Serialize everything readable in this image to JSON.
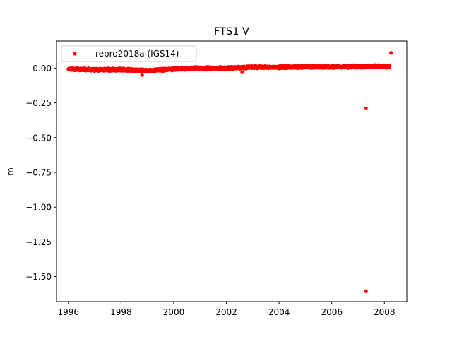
{
  "chart_data": {
    "type": "scatter",
    "title": "FTS1 V",
    "xlabel": "",
    "ylabel": "m",
    "xlim": [
      1995.55,
      2008.85
    ],
    "ylim": [
      -1.68,
      0.195
    ],
    "x_ticks": [
      1996,
      1998,
      2000,
      2002,
      2004,
      2006,
      2008
    ],
    "x_tick_labels": [
      "1996",
      "1998",
      "2000",
      "2002",
      "2004",
      "2006",
      "2008"
    ],
    "y_ticks": [
      0.0,
      -0.25,
      -0.5,
      -0.75,
      -1.0,
      -1.25,
      -1.5
    ],
    "y_tick_labels": [
      "0.00",
      "−0.25",
      "−0.50",
      "−0.75",
      "−1.00",
      "−1.25",
      "−1.50"
    ],
    "grid": false,
    "legend": {
      "position": "top-left",
      "entries": [
        "repro2018a (IGS14)"
      ]
    },
    "series": [
      {
        "name": "repro2018a (IGS14)",
        "color": "#ff0000",
        "marker": "circle",
        "trend": [
          [
            1996.0,
            -0.005
          ],
          [
            1997.0,
            -0.012
          ],
          [
            1998.0,
            -0.01
          ],
          [
            1999.0,
            -0.018
          ],
          [
            2000.0,
            -0.006
          ],
          [
            2001.0,
            0.0
          ],
          [
            2002.0,
            -0.002
          ],
          [
            2003.0,
            0.008
          ],
          [
            2004.0,
            0.006
          ],
          [
            2005.0,
            0.01
          ],
          [
            2006.0,
            0.008
          ],
          [
            2007.0,
            0.012
          ],
          [
            2008.2,
            0.012
          ]
        ],
        "outliers": [
          {
            "x": 1998.8,
            "y": -0.05
          },
          {
            "x": 2002.6,
            "y": -0.03
          },
          {
            "x": 2007.3,
            "y": -0.29
          },
          {
            "x": 2007.3,
            "y": -1.605
          },
          {
            "x": 2008.25,
            "y": 0.11
          }
        ]
      }
    ]
  }
}
